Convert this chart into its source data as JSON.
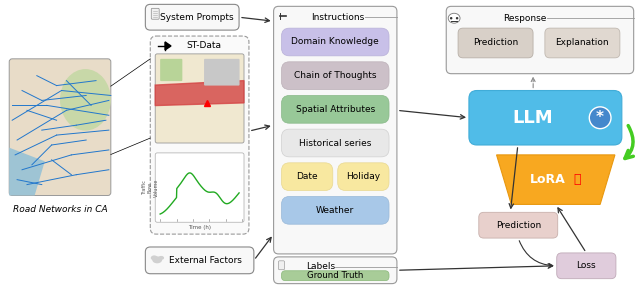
{
  "fig_width": 6.4,
  "fig_height": 2.87,
  "dpi": 100,
  "bg_color": "#ffffff",
  "road_network_label": "Road Networks in CA",
  "instruction_items": [
    {
      "text": "Domain Knowledge",
      "fc": "#c8c0e8",
      "ec": "#b8b0d8"
    },
    {
      "text": "Chain of Thoughts",
      "fc": "#ccc0c8",
      "ec": "#bcb0b8"
    },
    {
      "text": "Spatial Attributes",
      "fc": "#98c898",
      "ec": "#88b888"
    },
    {
      "text": "Historical series",
      "fc": "#e8e8e8",
      "ec": "#d0d0d0"
    },
    {
      "text": "Date",
      "fc": "#f8e8a0",
      "ec": "#e8d890"
    },
    {
      "text": "Holiday",
      "fc": "#f8e8a0",
      "ec": "#e8d890"
    },
    {
      "text": "Weather",
      "fc": "#a8c8e8",
      "ec": "#98b8d8"
    }
  ],
  "ground_truth_fc": "#a8cc98",
  "ground_truth_ec": "#88b878",
  "llm_fc": "#50bce8",
  "llm_ec": "#40acd8",
  "lora_fc": "#f8a820",
  "lora_ec": "#e89810",
  "pred_box_fc": "#e8d0cc",
  "pred_box_ec": "#c8b0ac",
  "loss_box_fc": "#e0ccdc",
  "loss_box_ec": "#c0aab8",
  "resp_pred_fc": "#d8d0c8",
  "resp_pred_ec": "#b8b0a8",
  "resp_expl_fc": "#e0d8d0",
  "resp_expl_ec": "#c0b8b0"
}
